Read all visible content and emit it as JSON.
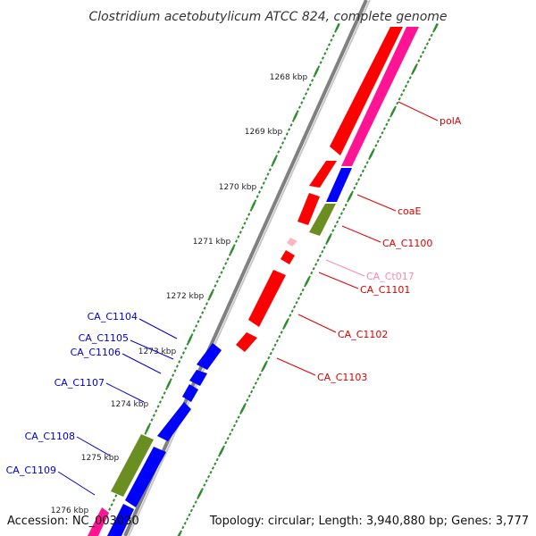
{
  "title": "Clostridium acetobutylicum ATCC 824, complete genome",
  "footer": {
    "accession": "Accession: NC_003030",
    "summary": "Topology: circular; Length: 3,940,880 bp; Genes: 3,777"
  },
  "scale": {
    "ticks": [
      "1268 kbp",
      "1269 kbp",
      "1270 kbp",
      "1271 kbp",
      "1272 kbp",
      "1273 kbp",
      "1274 kbp",
      "1275 kbp",
      "1276 kbp"
    ]
  },
  "colors": {
    "backbone": "#808080",
    "ruler_dots": "#2e8b2e",
    "forward_cds": "#ff0000",
    "reverse_cds": "#0000ff",
    "gene_track": "#ff1493",
    "rna_trna": "#ffb6c1",
    "olive_feature": "#6b8e23",
    "forward_label": "#dd0000",
    "reverse_label": "#0000cc",
    "trna_label": "#ff88aa"
  },
  "genes": [
    {
      "name": "polA",
      "strand": "forward"
    },
    {
      "name": "coaE",
      "strand": "forward"
    },
    {
      "name": "CA_C1100",
      "strand": "forward"
    },
    {
      "name": "CA_Ct017",
      "strand": "forward",
      "type": "tRNA"
    },
    {
      "name": "CA_C1101",
      "strand": "forward"
    },
    {
      "name": "CA_C1102",
      "strand": "forward"
    },
    {
      "name": "CA_C1103",
      "strand": "forward"
    },
    {
      "name": "CA_C1104",
      "strand": "reverse"
    },
    {
      "name": "CA_C1105",
      "strand": "reverse"
    },
    {
      "name": "CA_C1106",
      "strand": "reverse"
    },
    {
      "name": "CA_C1107",
      "strand": "reverse"
    },
    {
      "name": "CA_C1108",
      "strand": "reverse"
    },
    {
      "name": "CA_C1109",
      "strand": "reverse"
    }
  ]
}
